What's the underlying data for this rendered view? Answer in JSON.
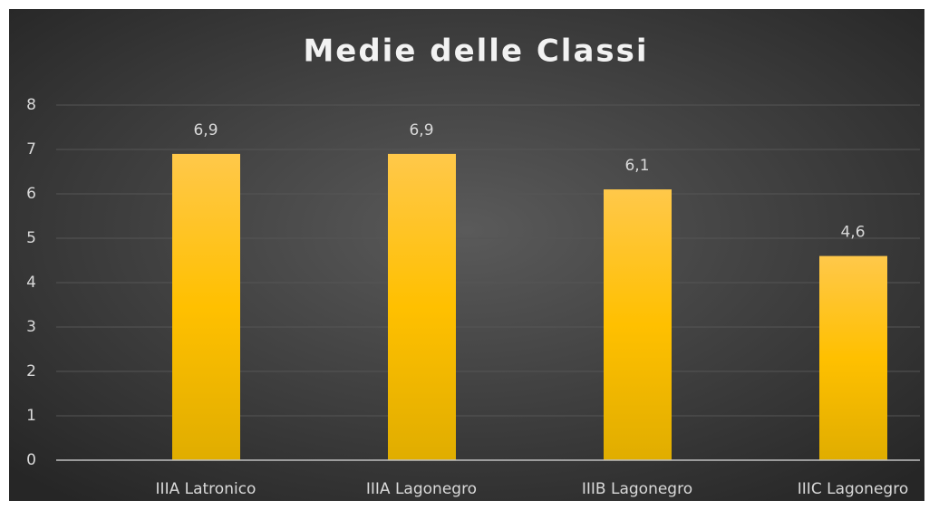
{
  "chart_data": {
    "type": "bar",
    "title": "Medie delle Classi",
    "categories": [
      "IIIA Latronico",
      "IIIA Lagonegro",
      "IIIB Lagonegro",
      "IIIC Lagonegro"
    ],
    "values": [
      6.9,
      6.9,
      6.1,
      4.6
    ],
    "value_labels": [
      "6,9",
      "6,9",
      "6,1",
      "4,6"
    ],
    "color": "#ffc000",
    "ylim": [
      0,
      8
    ],
    "yticks": [
      0,
      1,
      2,
      3,
      4,
      5,
      6,
      7,
      8
    ],
    "grid": true
  }
}
